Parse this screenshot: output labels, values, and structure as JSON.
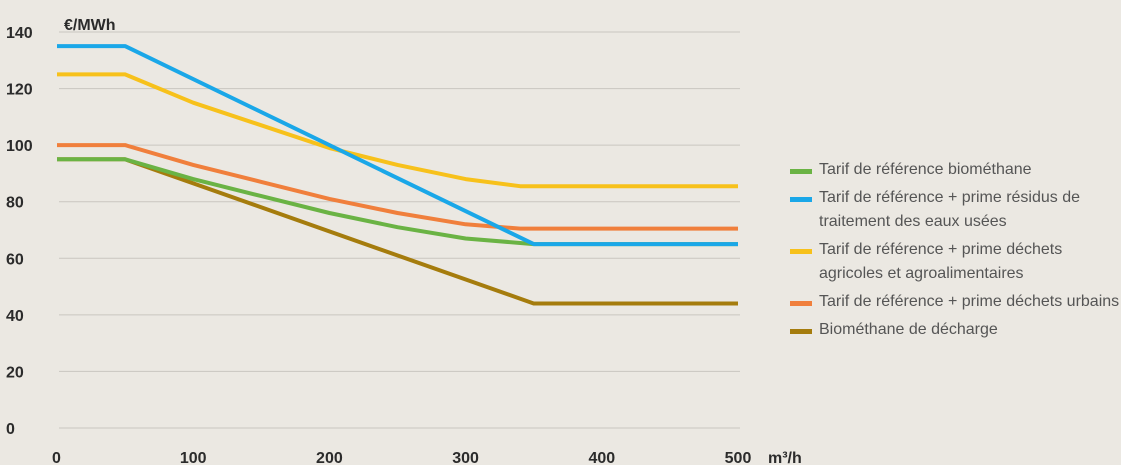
{
  "chart_data": {
    "type": "line",
    "ylabel": "€/MWh",
    "xlabel": "m³/h",
    "xlim": [
      0,
      500
    ],
    "ylim": [
      0,
      140
    ],
    "xticks": [
      0,
      100,
      200,
      300,
      400,
      500
    ],
    "yticks": [
      0,
      20,
      40,
      60,
      80,
      100,
      120,
      140
    ],
    "grid": "horizontal",
    "legend_position": "right",
    "series": [
      {
        "name": "Tarif de référence biométhane",
        "color": "#6ab344",
        "points": [
          [
            0,
            95
          ],
          [
            50,
            95
          ],
          [
            100,
            88
          ],
          [
            150,
            82
          ],
          [
            200,
            76
          ],
          [
            250,
            71
          ],
          [
            300,
            67
          ],
          [
            350,
            65
          ],
          [
            500,
            65
          ]
        ]
      },
      {
        "name": "Tarif de référence + prime résidus de traitement des eaux usées",
        "color": "#1aa7e8",
        "points": [
          [
            0,
            135
          ],
          [
            50,
            135
          ],
          [
            350,
            65
          ],
          [
            500,
            65
          ]
        ]
      },
      {
        "name": "Tarif de référence + prime déchets agricoles et agroalimentaires",
        "color": "#f7c11b",
        "points": [
          [
            0,
            125
          ],
          [
            50,
            125
          ],
          [
            100,
            115
          ],
          [
            150,
            107
          ],
          [
            200,
            99
          ],
          [
            250,
            93
          ],
          [
            300,
            88
          ],
          [
            340,
            85.5
          ],
          [
            350,
            85.5
          ],
          [
            500,
            85.5
          ]
        ]
      },
      {
        "name": "Tarif de référence + prime déchets urbains",
        "color": "#f07f3c",
        "points": [
          [
            0,
            100
          ],
          [
            50,
            100
          ],
          [
            100,
            93
          ],
          [
            150,
            87
          ],
          [
            200,
            81
          ],
          [
            250,
            76
          ],
          [
            300,
            72
          ],
          [
            340,
            70.5
          ],
          [
            350,
            70.5
          ],
          [
            500,
            70.5
          ]
        ]
      },
      {
        "name": "Biométhane de décharge",
        "color": "#a57c0d",
        "points": [
          [
            0,
            95
          ],
          [
            50,
            95
          ],
          [
            350,
            44
          ],
          [
            500,
            44
          ]
        ]
      }
    ]
  }
}
